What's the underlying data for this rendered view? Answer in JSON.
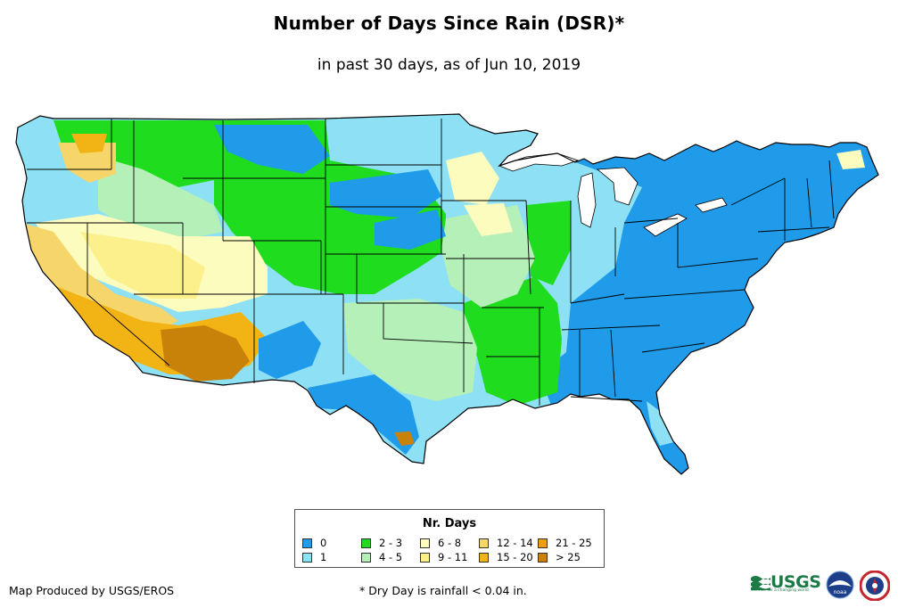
{
  "title": "Number of Days Since Rain (DSR)*",
  "subtitle": "in past 30 days, as of Jun 10, 2019",
  "legend": {
    "title": "Nr. Days",
    "items": [
      {
        "label": "0",
        "color": "#1f9bea"
      },
      {
        "label": "1",
        "color": "#8ee0f4"
      },
      {
        "label": "2 - 3",
        "color": "#1fdc1f"
      },
      {
        "label": "4 - 5",
        "color": "#b4f0b8"
      },
      {
        "label": "6 - 8",
        "color": "#fcfcbe"
      },
      {
        "label": "9 - 11",
        "color": "#fcf08c"
      },
      {
        "label": "12 - 14",
        "color": "#f6d66a"
      },
      {
        "label": "15 - 20",
        "color": "#f2b414"
      },
      {
        "label": "21 - 25",
        "color": "#ea9e14"
      },
      {
        "label": "> 25",
        "color": "#c8820a"
      }
    ]
  },
  "credit": "Map Produced by USGS/EROS",
  "footnote": "* Dry Day is rainfall < 0.04 in.",
  "logos": {
    "usgs": "USGS",
    "usgs_tagline": "science for a changing world",
    "noaa": "noaa",
    "nws_icon": "nws-emblem-icon"
  },
  "colors": {
    "state_border": "#000000",
    "coast": "#000000"
  }
}
